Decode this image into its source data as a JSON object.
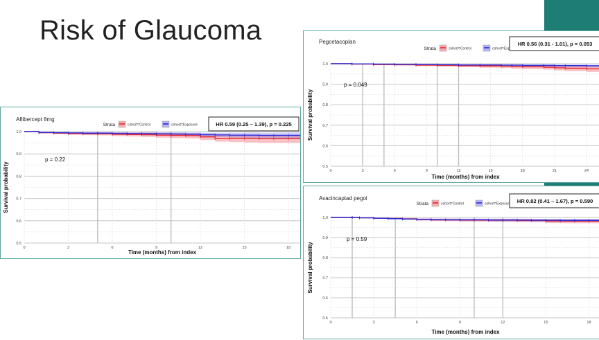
{
  "slide": {
    "title": "Risk of Glaucoma"
  },
  "colors": {
    "control": "#e8222a",
    "exposure": "#2a2ad8",
    "panel_border": "#5ea79e",
    "accent": "#1e7e76"
  },
  "chart_data": [
    {
      "type": "line",
      "panel_title": "Aflibercept 8mg",
      "legend_title": "Strata",
      "hr_label": "HR 0.59 (0.25 – 1.39), p = 0.225",
      "p_label": "p = 0.22",
      "xlabel": "Time (months) from index",
      "ylabel": "Survival probability",
      "xticks": [
        0,
        3,
        6,
        9,
        12,
        15,
        18
      ],
      "yticks": [
        0.5,
        0.6,
        0.7,
        0.8,
        0.9,
        1.0
      ],
      "ytick_labels": [
        "0.5",
        "0.6",
        "0.7",
        "0.8",
        "0.9",
        "1.0"
      ],
      "xlim": [
        0,
        18.8
      ],
      "ylim": [
        0.5,
        1.0
      ],
      "series": [
        {
          "name": "cohort=Control",
          "x": [
            0,
            1,
            2,
            3,
            4,
            5,
            6,
            7,
            8,
            9,
            10,
            11,
            12,
            13,
            14,
            15,
            16,
            17,
            18,
            18.8
          ],
          "y": [
            1.0,
            0.995,
            0.993,
            0.991,
            0.99,
            0.99,
            0.988,
            0.987,
            0.986,
            0.984,
            0.983,
            0.982,
            0.976,
            0.97,
            0.97,
            0.97,
            0.968,
            0.968,
            0.968,
            0.968
          ],
          "lower": [
            1.0,
            0.992,
            0.989,
            0.986,
            0.984,
            0.983,
            0.98,
            0.978,
            0.976,
            0.973,
            0.971,
            0.969,
            0.962,
            0.955,
            0.953,
            0.951,
            0.949,
            0.949,
            0.949,
            0.949
          ],
          "upper": [
            1.0,
            0.998,
            0.997,
            0.996,
            0.995,
            0.995,
            0.995,
            0.995,
            0.995,
            0.994,
            0.994,
            0.993,
            0.989,
            0.984,
            0.985,
            0.986,
            0.985,
            0.985,
            0.985,
            0.985
          ]
        },
        {
          "name": "cohort=Exposure",
          "x": [
            0,
            1,
            2,
            3,
            4,
            5,
            6,
            7,
            8,
            9,
            10,
            11,
            12,
            13,
            14,
            15,
            16,
            17,
            18,
            18.8
          ],
          "y": [
            1.0,
            0.996,
            0.995,
            0.994,
            0.993,
            0.993,
            0.992,
            0.991,
            0.991,
            0.99,
            0.989,
            0.988,
            0.986,
            0.985,
            0.984,
            0.984,
            0.983,
            0.983,
            0.983,
            0.983
          ],
          "lower": [
            1.0,
            0.993,
            0.991,
            0.99,
            0.988,
            0.988,
            0.986,
            0.985,
            0.984,
            0.983,
            0.981,
            0.98,
            0.977,
            0.975,
            0.973,
            0.972,
            0.971,
            0.97,
            0.97,
            0.97
          ],
          "upper": [
            1.0,
            0.999,
            0.999,
            0.998,
            0.998,
            0.998,
            0.998,
            0.997,
            0.998,
            0.997,
            0.997,
            0.996,
            0.995,
            0.995,
            0.995,
            0.996,
            0.995,
            0.996,
            0.996,
            0.996
          ]
        }
      ]
    },
    {
      "type": "line",
      "panel_title": "Pegcetacoplan",
      "legend_title": "Strata",
      "hr_label": "HR 0.56 (0.31 - 1.01), p = 0.053",
      "p_label": "p = 0.049",
      "xlabel": "Time (months) from index",
      "ylabel": "Survival probability",
      "xticks": [
        0,
        3,
        6,
        9,
        12,
        15,
        18,
        21,
        24
      ],
      "yticks": [
        0.5,
        0.6,
        0.7,
        0.8,
        0.9,
        1.0
      ],
      "ytick_labels": [
        "0.5",
        "0.6",
        "0.7",
        "0.8",
        "0.9",
        "1.0"
      ],
      "xlim": [
        0,
        25.3
      ],
      "ylim": [
        0.5,
        1.0
      ],
      "series": [
        {
          "name": "cohort=Control",
          "x": [
            0,
            2,
            4,
            6,
            8,
            10,
            12,
            14,
            16,
            17,
            18,
            20,
            21,
            22,
            24,
            25.3
          ],
          "y": [
            1.0,
            0.998,
            0.996,
            0.995,
            0.993,
            0.992,
            0.99,
            0.989,
            0.988,
            0.986,
            0.985,
            0.983,
            0.98,
            0.978,
            0.975,
            0.973
          ],
          "lower": [
            1.0,
            0.996,
            0.993,
            0.991,
            0.988,
            0.986,
            0.983,
            0.981,
            0.979,
            0.976,
            0.974,
            0.971,
            0.967,
            0.964,
            0.96,
            0.957
          ],
          "upper": [
            1.0,
            0.999,
            0.998,
            0.998,
            0.997,
            0.997,
            0.996,
            0.996,
            0.995,
            0.994,
            0.994,
            0.993,
            0.991,
            0.99,
            0.988,
            0.987
          ]
        },
        {
          "name": "cohort=Exposure",
          "x": [
            0,
            2,
            4,
            6,
            8,
            10,
            12,
            14,
            16,
            17,
            18,
            20,
            21,
            22,
            24,
            25.3
          ],
          "y": [
            1.0,
            0.999,
            0.998,
            0.997,
            0.996,
            0.995,
            0.994,
            0.994,
            0.993,
            0.993,
            0.992,
            0.992,
            0.991,
            0.991,
            0.99,
            0.99
          ],
          "lower": [
            1.0,
            0.997,
            0.996,
            0.994,
            0.993,
            0.991,
            0.99,
            0.989,
            0.988,
            0.987,
            0.986,
            0.985,
            0.984,
            0.983,
            0.982,
            0.981
          ],
          "upper": [
            1.0,
            1.0,
            0.999,
            0.999,
            0.998,
            0.998,
            0.997,
            0.997,
            0.997,
            0.997,
            0.996,
            0.996,
            0.996,
            0.996,
            0.995,
            0.995
          ]
        }
      ]
    },
    {
      "type": "line",
      "panel_title": "Avacincaptad pegol",
      "legend_title": "Strata",
      "hr_label": "HR 0.82 (0.41 – 1.67), p = 0.590",
      "p_label": "p = 0.59",
      "xlabel": "Time (months) from index",
      "ylabel": "Survival probability",
      "xticks": [
        0,
        3,
        6,
        9,
        12,
        15,
        18
      ],
      "yticks": [
        0.5,
        0.6,
        0.7,
        0.8,
        0.9,
        1.0
      ],
      "ytick_labels": [
        "0.5",
        "0.6",
        "0.7",
        "0.8",
        "0.9",
        "1.0"
      ],
      "xlim": [
        0,
        18.8
      ],
      "ylim": [
        0.5,
        1.0
      ],
      "series": [
        {
          "name": "cohort=Control",
          "x": [
            0,
            1.5,
            2,
            3,
            4,
            5,
            6,
            7,
            8,
            9,
            10,
            11,
            12,
            13,
            14,
            15,
            16,
            17,
            18,
            18.8
          ],
          "y": [
            1.0,
            1.0,
            0.998,
            0.996,
            0.995,
            0.993,
            0.99,
            0.988,
            0.988,
            0.987,
            0.987,
            0.986,
            0.986,
            0.985,
            0.985,
            0.982,
            0.982,
            0.982,
            0.982,
            0.982
          ],
          "lower": [
            1.0,
            1.0,
            0.996,
            0.993,
            0.991,
            0.989,
            0.985,
            0.982,
            0.982,
            0.98,
            0.98,
            0.979,
            0.978,
            0.977,
            0.976,
            0.972,
            0.971,
            0.971,
            0.971,
            0.971
          ],
          "upper": [
            1.0,
            1.0,
            0.999,
            0.998,
            0.998,
            0.997,
            0.995,
            0.994,
            0.994,
            0.993,
            0.993,
            0.993,
            0.993,
            0.992,
            0.992,
            0.991,
            0.991,
            0.991,
            0.991,
            0.991
          ]
        },
        {
          "name": "cohort=Exposure",
          "x": [
            0,
            1.5,
            2,
            3,
            4,
            5,
            6,
            7,
            8,
            9,
            10,
            11,
            12,
            13,
            14,
            15,
            16,
            17,
            18,
            18.8
          ],
          "y": [
            1.0,
            1.0,
            0.998,
            0.996,
            0.994,
            0.992,
            0.99,
            0.989,
            0.988,
            0.988,
            0.988,
            0.987,
            0.987,
            0.987,
            0.986,
            0.986,
            0.985,
            0.985,
            0.985,
            0.985
          ],
          "lower": [
            1.0,
            1.0,
            0.996,
            0.993,
            0.99,
            0.988,
            0.985,
            0.983,
            0.982,
            0.981,
            0.981,
            0.98,
            0.98,
            0.979,
            0.978,
            0.977,
            0.976,
            0.976,
            0.976,
            0.976
          ],
          "upper": [
            1.0,
            1.0,
            0.999,
            0.998,
            0.997,
            0.996,
            0.995,
            0.994,
            0.994,
            0.994,
            0.994,
            0.994,
            0.994,
            0.994,
            0.993,
            0.993,
            0.993,
            0.993,
            0.993,
            0.993
          ]
        }
      ]
    }
  ]
}
